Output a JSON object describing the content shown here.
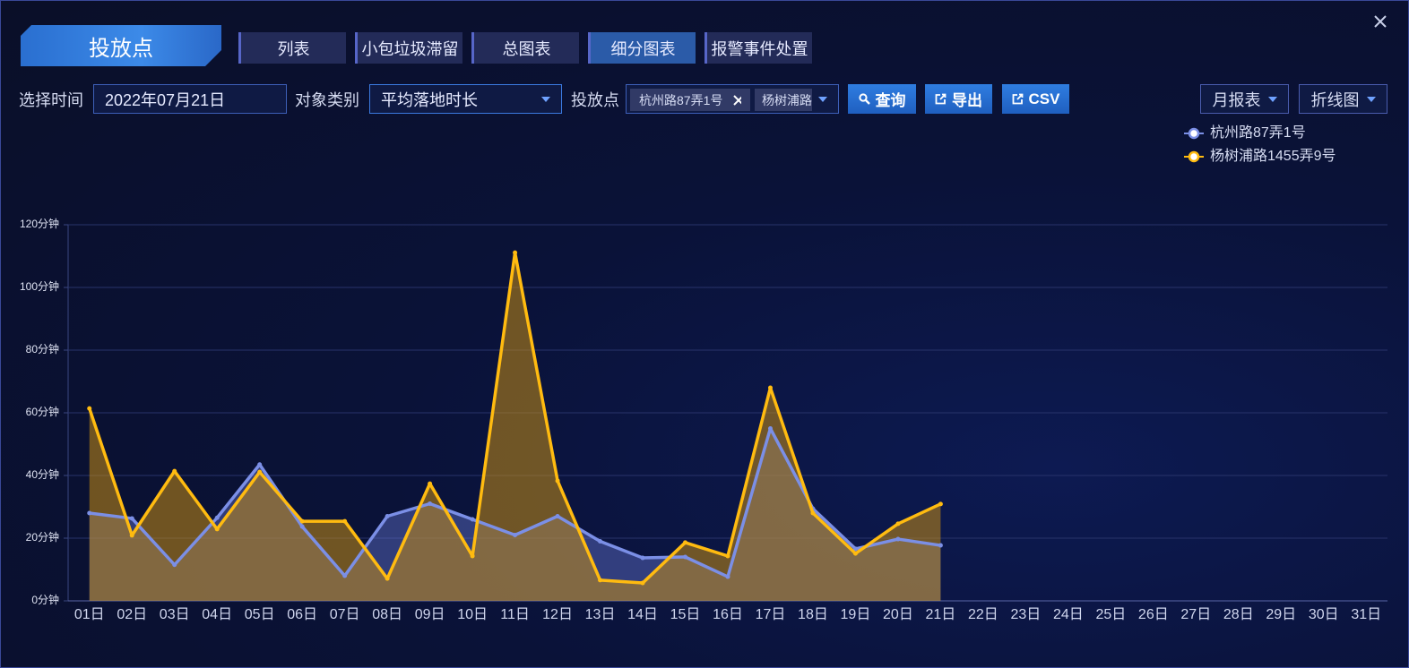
{
  "ui": {
    "title": "投放点",
    "tabs": [
      "列表",
      "小包垃圾滞留",
      "总图表",
      "细分图表",
      "报警事件处置"
    ],
    "active_tab": 3,
    "time_label": "选择时间",
    "time_value": "2022年07月21日",
    "type_label": "对象类别",
    "type_value": "平均落地时长",
    "point_label": "投放点",
    "point_chips": [
      "杭州路87弄1号",
      "杨树浦路"
    ],
    "buttons": [
      "查询",
      "导出",
      "CSV"
    ],
    "report_select": "月报表",
    "chart_select": "折线图"
  },
  "chart_data": {
    "type": "line",
    "categories": [
      "01日",
      "02日",
      "03日",
      "04日",
      "05日",
      "06日",
      "07日",
      "08日",
      "09日",
      "10日",
      "11日",
      "12日",
      "13日",
      "14日",
      "15日",
      "16日",
      "17日",
      "18日",
      "19日",
      "20日",
      "21日",
      "22日",
      "23日",
      "24日",
      "25日",
      "26日",
      "27日",
      "28日",
      "29日",
      "30日",
      "31日"
    ],
    "series": [
      {
        "name": "杭州路87弄1号",
        "color": "#7b8fe6",
        "fill": "rgba(104,122,214,0.42)",
        "values": [
          28,
          26.3,
          11.5,
          26.5,
          43.5,
          23.7,
          8,
          27,
          31,
          26,
          21,
          27,
          19,
          13.7,
          14,
          7.7,
          55,
          29.4,
          16.6,
          19.7,
          17.7,
          null,
          null,
          null,
          null,
          null,
          null,
          null,
          null,
          null,
          null
        ]
      },
      {
        "name": "杨树浦路1455弄9号",
        "color": "#ffbb10",
        "fill": "rgba(196,140,20,0.55)",
        "values": [
          61.4,
          20.9,
          41.4,
          22.9,
          41.1,
          25.4,
          25.4,
          7.1,
          37.4,
          14.3,
          111.1,
          38.3,
          6.6,
          5.7,
          18.6,
          14.3,
          68,
          28,
          15.1,
          24.6,
          30.9,
          null,
          null,
          null,
          null,
          null,
          null,
          null,
          null,
          null,
          null
        ]
      }
    ],
    "ylim": [
      0,
      120
    ],
    "yticks": [
      {
        "value": 0,
        "label": "0分钟"
      },
      {
        "value": 20,
        "label": "20分钟"
      },
      {
        "value": 40,
        "label": "40分钟"
      },
      {
        "value": 60,
        "label": "60分钟"
      },
      {
        "value": 80,
        "label": "80分钟"
      },
      {
        "value": 100,
        "label": "100分钟"
      },
      {
        "value": 120,
        "label": "120分钟"
      }
    ],
    "grid": true,
    "legend": "top-right"
  }
}
